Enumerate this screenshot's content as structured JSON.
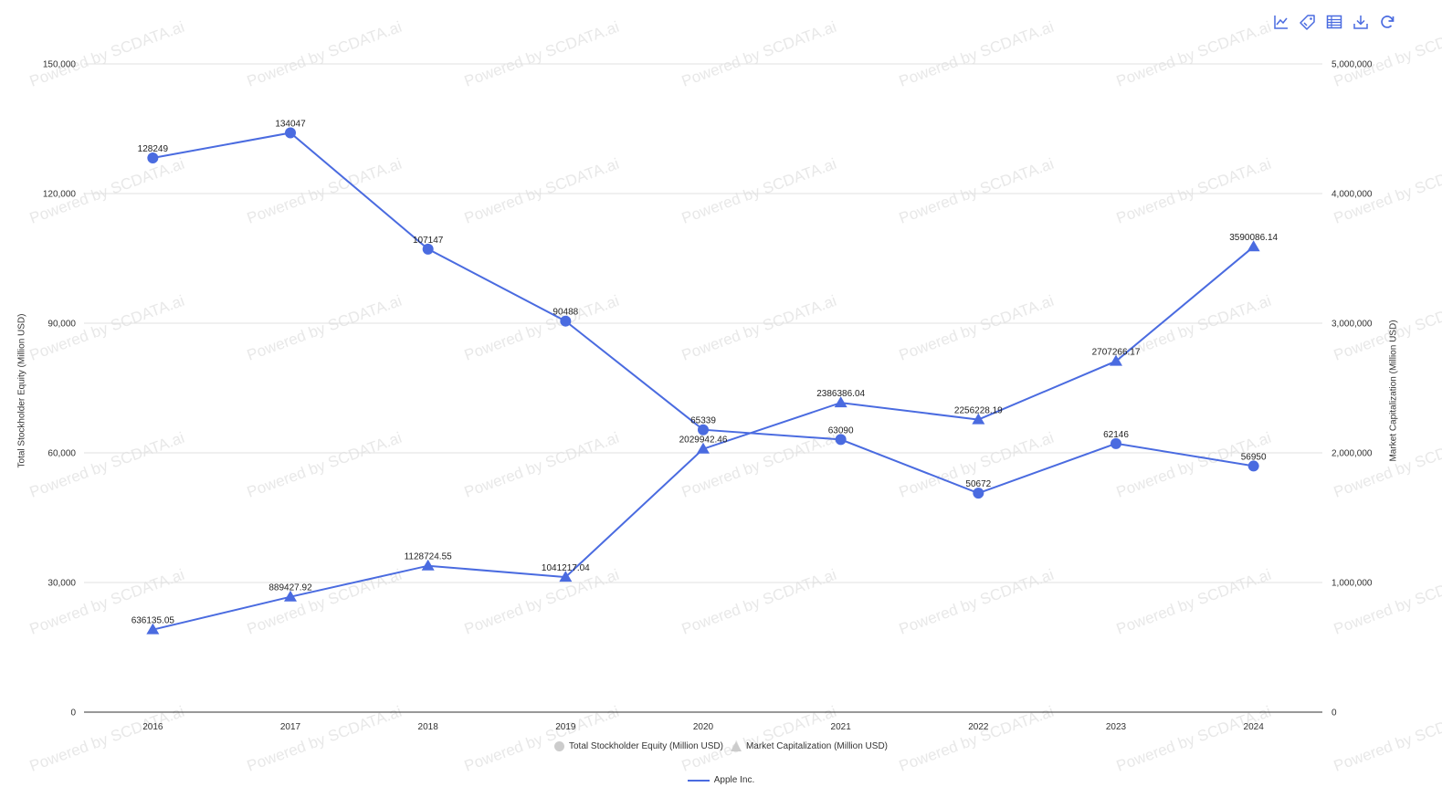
{
  "toolbar": {
    "icons": [
      "line-chart-icon",
      "tag-icon",
      "table-icon",
      "download-icon",
      "refresh-icon"
    ]
  },
  "colors": {
    "series": "#4a6be0",
    "grid": "#e0e0e0",
    "axis": "#333333",
    "legend_inactive": "#cccccc",
    "watermark": "#e8e8e8"
  },
  "watermark": "Powered by SCDATA.ai",
  "legend": {
    "measures": [
      {
        "shape": "circle",
        "label": "Total Stockholder Equity (Million USD)"
      },
      {
        "shape": "triangle",
        "label": "Market Capitalization (Million USD)"
      }
    ],
    "series": [
      {
        "label": "Apple Inc."
      }
    ]
  },
  "chart_data": {
    "type": "line",
    "categories": [
      "2016",
      "2017",
      "2018",
      "2019",
      "2020",
      "2021",
      "2022",
      "2023",
      "2024"
    ],
    "y_left": {
      "title": "Total Stockholder Equity (Million USD)",
      "range": [
        0,
        150000
      ],
      "ticks": [
        "0",
        "30,000",
        "60,000",
        "90,000",
        "120,000",
        "150,000"
      ]
    },
    "y_right": {
      "title": "Market Capitalization (Million USD)",
      "range": [
        0,
        5000000
      ],
      "ticks": [
        "0",
        "1,000,000",
        "2,000,000",
        "3,000,000",
        "4,000,000",
        "5,000,000"
      ]
    },
    "grid": true,
    "legend_position": "bottom",
    "series": [
      {
        "name": "Apple Inc.",
        "measure": "Total Stockholder Equity (Million USD)",
        "axis": "left",
        "marker": "circle",
        "values": [
          128249,
          134047,
          107147,
          90488,
          65339,
          63090,
          50672,
          62146,
          56950
        ],
        "labels": [
          "128249",
          "134047",
          "107147",
          "90488",
          "65339",
          "63090",
          "50672",
          "62146",
          "56950"
        ]
      },
      {
        "name": "Apple Inc.",
        "measure": "Market Capitalization (Million USD)",
        "axis": "right",
        "marker": "triangle",
        "values": [
          636135.05,
          889427.92,
          1128724.55,
          1041217.04,
          2029942.46,
          2386386.04,
          2256228.19,
          2707266.17,
          3590086.14
        ],
        "labels": [
          "636135.05",
          "889427.92",
          "1128724.55",
          "1041217.04",
          "2029942.46",
          "2386386.04",
          "2256228.19",
          "2707266.17",
          "3590086.14"
        ]
      }
    ]
  }
}
